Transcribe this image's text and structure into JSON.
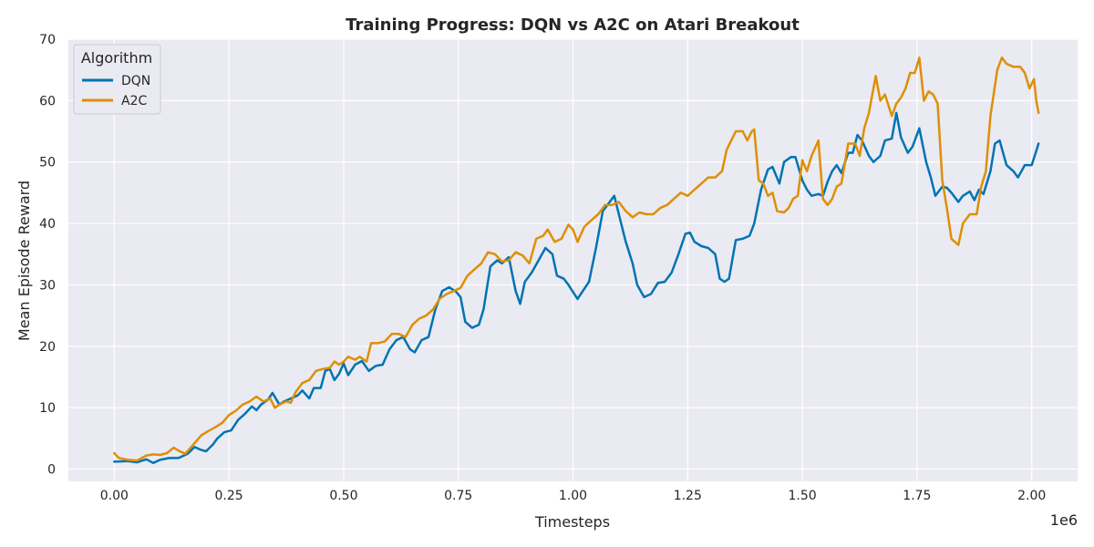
{
  "chart_data": {
    "type": "line",
    "title": "Training Progress: DQN vs A2C on Atari Breakout",
    "xlabel": "Timesteps",
    "ylabel": "Mean Episode Reward",
    "x_offset_label": "1e6",
    "xlim": [
      -0.1,
      2.1
    ],
    "ylim": [
      -2,
      70
    ],
    "x_ticks": [
      0.0,
      0.25,
      0.5,
      0.75,
      1.0,
      1.25,
      1.5,
      1.75,
      2.0
    ],
    "x_tick_labels": [
      "0.00",
      "0.25",
      "0.50",
      "0.75",
      "1.00",
      "1.25",
      "1.50",
      "1.75",
      "2.00"
    ],
    "y_ticks": [
      0,
      10,
      20,
      30,
      40,
      50,
      60,
      70
    ],
    "y_tick_labels": [
      "0",
      "10",
      "20",
      "30",
      "40",
      "50",
      "60",
      "70"
    ],
    "grid": true,
    "legend_title": "Algorithm",
    "legend_position": "top-left",
    "series": [
      {
        "name": "DQN",
        "color": "#0173b2",
        "points": [
          [
            0.0,
            1.2
          ],
          [
            0.03,
            1.3
          ],
          [
            0.05,
            1.1
          ],
          [
            0.07,
            1.6
          ],
          [
            0.085,
            1.0
          ],
          [
            0.1,
            1.5
          ],
          [
            0.12,
            1.8
          ],
          [
            0.14,
            1.8
          ],
          [
            0.16,
            2.5
          ],
          [
            0.175,
            3.6
          ],
          [
            0.19,
            3.1
          ],
          [
            0.2,
            2.9
          ],
          [
            0.215,
            4.0
          ],
          [
            0.225,
            5.0
          ],
          [
            0.24,
            6.0
          ],
          [
            0.255,
            6.3
          ],
          [
            0.27,
            8.0
          ],
          [
            0.285,
            9.0
          ],
          [
            0.3,
            10.2
          ],
          [
            0.31,
            9.6
          ],
          [
            0.32,
            10.5
          ],
          [
            0.335,
            11.3
          ],
          [
            0.345,
            12.4
          ],
          [
            0.36,
            10.5
          ],
          [
            0.37,
            11.0
          ],
          [
            0.385,
            11.5
          ],
          [
            0.4,
            12.0
          ],
          [
            0.41,
            12.8
          ],
          [
            0.425,
            11.5
          ],
          [
            0.435,
            13.2
          ],
          [
            0.45,
            13.2
          ],
          [
            0.46,
            16.0
          ],
          [
            0.47,
            16.3
          ],
          [
            0.48,
            14.5
          ],
          [
            0.49,
            15.5
          ],
          [
            0.5,
            17.2
          ],
          [
            0.51,
            15.3
          ],
          [
            0.525,
            17.0
          ],
          [
            0.54,
            17.6
          ],
          [
            0.555,
            16.0
          ],
          [
            0.57,
            16.8
          ],
          [
            0.585,
            17.0
          ],
          [
            0.6,
            19.5
          ],
          [
            0.615,
            21.0
          ],
          [
            0.63,
            21.5
          ],
          [
            0.645,
            19.5
          ],
          [
            0.655,
            19.0
          ],
          [
            0.67,
            21.0
          ],
          [
            0.685,
            21.5
          ],
          [
            0.7,
            26.0
          ],
          [
            0.715,
            29.0
          ],
          [
            0.73,
            29.6
          ],
          [
            0.745,
            28.9
          ],
          [
            0.755,
            28.0
          ],
          [
            0.765,
            24.0
          ],
          [
            0.78,
            23.0
          ],
          [
            0.795,
            23.5
          ],
          [
            0.805,
            26.0
          ],
          [
            0.82,
            33.0
          ],
          [
            0.835,
            34.0
          ],
          [
            0.845,
            33.5
          ],
          [
            0.86,
            34.5
          ],
          [
            0.875,
            29.0
          ],
          [
            0.885,
            26.9
          ],
          [
            0.895,
            30.5
          ],
          [
            0.91,
            32.0
          ],
          [
            0.925,
            34.0
          ],
          [
            0.94,
            36.0
          ],
          [
            0.955,
            35.0
          ],
          [
            0.965,
            31.5
          ],
          [
            0.98,
            31.0
          ],
          [
            0.99,
            30.0
          ],
          [
            1.01,
            27.7
          ],
          [
            1.035,
            30.5
          ],
          [
            1.05,
            36.0
          ],
          [
            1.065,
            42.0
          ],
          [
            1.08,
            43.5
          ],
          [
            1.09,
            44.5
          ],
          [
            1.1,
            41.5
          ],
          [
            1.115,
            37.0
          ],
          [
            1.13,
            33.5
          ],
          [
            1.14,
            30.0
          ],
          [
            1.155,
            28.0
          ],
          [
            1.17,
            28.5
          ],
          [
            1.185,
            30.3
          ],
          [
            1.2,
            30.5
          ],
          [
            1.215,
            32.0
          ],
          [
            1.23,
            35.0
          ],
          [
            1.245,
            38.3
          ],
          [
            1.255,
            38.5
          ],
          [
            1.265,
            37.0
          ],
          [
            1.28,
            36.3
          ],
          [
            1.295,
            36.0
          ],
          [
            1.31,
            35.0
          ],
          [
            1.32,
            31.0
          ],
          [
            1.33,
            30.5
          ],
          [
            1.34,
            31.0
          ],
          [
            1.355,
            37.3
          ],
          [
            1.37,
            37.5
          ],
          [
            1.385,
            38.0
          ],
          [
            1.395,
            40.0
          ],
          [
            1.41,
            45.5
          ],
          [
            1.425,
            48.8
          ],
          [
            1.435,
            49.2
          ],
          [
            1.45,
            46.5
          ],
          [
            1.46,
            50.0
          ],
          [
            1.475,
            50.8
          ],
          [
            1.485,
            50.8
          ],
          [
            1.5,
            47.0
          ],
          [
            1.51,
            45.5
          ],
          [
            1.52,
            44.5
          ],
          [
            1.535,
            44.8
          ],
          [
            1.545,
            44.5
          ],
          [
            1.555,
            46.8
          ],
          [
            1.565,
            48.5
          ],
          [
            1.575,
            49.5
          ],
          [
            1.585,
            48.2
          ],
          [
            1.6,
            51.5
          ],
          [
            1.61,
            51.5
          ],
          [
            1.62,
            54.4
          ],
          [
            1.63,
            53.5
          ],
          [
            1.645,
            51.0
          ],
          [
            1.655,
            50.0
          ],
          [
            1.67,
            51.0
          ],
          [
            1.68,
            53.5
          ],
          [
            1.695,
            53.8
          ],
          [
            1.705,
            58.0
          ],
          [
            1.715,
            54.0
          ],
          [
            1.73,
            51.5
          ],
          [
            1.74,
            52.5
          ],
          [
            1.755,
            55.5
          ],
          [
            1.77,
            50.0
          ],
          [
            1.78,
            47.5
          ],
          [
            1.79,
            44.5
          ],
          [
            1.805,
            46.0
          ],
          [
            1.815,
            45.8
          ],
          [
            1.825,
            45.0
          ],
          [
            1.84,
            43.5
          ],
          [
            1.85,
            44.5
          ],
          [
            1.865,
            45.2
          ],
          [
            1.875,
            43.8
          ],
          [
            1.885,
            45.5
          ],
          [
            1.895,
            44.8
          ],
          [
            1.91,
            48.5
          ],
          [
            1.92,
            53.0
          ],
          [
            1.93,
            53.5
          ],
          [
            1.945,
            49.5
          ],
          [
            1.96,
            48.5
          ],
          [
            1.97,
            47.5
          ],
          [
            1.985,
            49.5
          ],
          [
            2.0,
            49.5
          ],
          [
            2.015,
            53.0
          ]
        ]
      },
      {
        "name": "A2C",
        "color": "#de8f05",
        "points": [
          [
            0.0,
            2.6
          ],
          [
            0.01,
            1.8
          ],
          [
            0.03,
            1.5
          ],
          [
            0.05,
            1.4
          ],
          [
            0.07,
            2.2
          ],
          [
            0.085,
            2.4
          ],
          [
            0.1,
            2.3
          ],
          [
            0.115,
            2.6
          ],
          [
            0.13,
            3.5
          ],
          [
            0.14,
            3.0
          ],
          [
            0.155,
            2.5
          ],
          [
            0.17,
            3.8
          ],
          [
            0.19,
            5.5
          ],
          [
            0.205,
            6.2
          ],
          [
            0.22,
            6.8
          ],
          [
            0.235,
            7.5
          ],
          [
            0.25,
            8.8
          ],
          [
            0.265,
            9.5
          ],
          [
            0.28,
            10.5
          ],
          [
            0.295,
            11.0
          ],
          [
            0.31,
            11.8
          ],
          [
            0.325,
            11.0
          ],
          [
            0.34,
            11.5
          ],
          [
            0.35,
            10.0
          ],
          [
            0.36,
            10.5
          ],
          [
            0.375,
            11.0
          ],
          [
            0.385,
            10.8
          ],
          [
            0.395,
            12.5
          ],
          [
            0.41,
            14.0
          ],
          [
            0.425,
            14.5
          ],
          [
            0.44,
            16.0
          ],
          [
            0.455,
            16.3
          ],
          [
            0.47,
            16.5
          ],
          [
            0.48,
            17.5
          ],
          [
            0.49,
            17.0
          ],
          [
            0.5,
            17.5
          ],
          [
            0.51,
            18.3
          ],
          [
            0.525,
            17.8
          ],
          [
            0.535,
            18.3
          ],
          [
            0.55,
            17.5
          ],
          [
            0.56,
            20.5
          ],
          [
            0.575,
            20.5
          ],
          [
            0.59,
            20.8
          ],
          [
            0.605,
            22.0
          ],
          [
            0.62,
            22.0
          ],
          [
            0.635,
            21.5
          ],
          [
            0.65,
            23.5
          ],
          [
            0.665,
            24.5
          ],
          [
            0.68,
            25.0
          ],
          [
            0.695,
            26.0
          ],
          [
            0.71,
            27.8
          ],
          [
            0.725,
            28.5
          ],
          [
            0.74,
            29.0
          ],
          [
            0.755,
            29.5
          ],
          [
            0.77,
            31.5
          ],
          [
            0.785,
            32.5
          ],
          [
            0.8,
            33.5
          ],
          [
            0.815,
            35.3
          ],
          [
            0.83,
            35.0
          ],
          [
            0.845,
            33.8
          ],
          [
            0.86,
            34.0
          ],
          [
            0.875,
            35.3
          ],
          [
            0.89,
            34.8
          ],
          [
            0.905,
            33.5
          ],
          [
            0.92,
            37.5
          ],
          [
            0.935,
            38.0
          ],
          [
            0.945,
            39.0
          ],
          [
            0.96,
            37.0
          ],
          [
            0.975,
            37.5
          ],
          [
            0.99,
            39.8
          ],
          [
            1.0,
            39.0
          ],
          [
            1.01,
            37.0
          ],
          [
            1.025,
            39.5
          ],
          [
            1.04,
            40.5
          ],
          [
            1.055,
            41.5
          ],
          [
            1.07,
            43.0
          ],
          [
            1.085,
            43.0
          ],
          [
            1.1,
            43.5
          ],
          [
            1.115,
            42.0
          ],
          [
            1.13,
            41.0
          ],
          [
            1.145,
            41.8
          ],
          [
            1.16,
            41.5
          ],
          [
            1.175,
            41.5
          ],
          [
            1.19,
            42.5
          ],
          [
            1.205,
            43.0
          ],
          [
            1.22,
            44.0
          ],
          [
            1.235,
            45.0
          ],
          [
            1.25,
            44.5
          ],
          [
            1.265,
            45.5
          ],
          [
            1.28,
            46.5
          ],
          [
            1.295,
            47.5
          ],
          [
            1.31,
            47.5
          ],
          [
            1.325,
            48.5
          ],
          [
            1.335,
            52.0
          ],
          [
            1.345,
            53.5
          ],
          [
            1.355,
            55.0
          ],
          [
            1.37,
            55.0
          ],
          [
            1.38,
            53.5
          ],
          [
            1.39,
            55.0
          ],
          [
            1.395,
            55.3
          ],
          [
            1.405,
            47.0
          ],
          [
            1.415,
            46.5
          ],
          [
            1.425,
            44.5
          ],
          [
            1.435,
            45.0
          ],
          [
            1.445,
            42.0
          ],
          [
            1.46,
            41.8
          ],
          [
            1.47,
            42.5
          ],
          [
            1.48,
            44.0
          ],
          [
            1.49,
            44.5
          ],
          [
            1.5,
            50.3
          ],
          [
            1.51,
            48.5
          ],
          [
            1.52,
            51.0
          ],
          [
            1.535,
            53.5
          ],
          [
            1.545,
            44.0
          ],
          [
            1.555,
            43.0
          ],
          [
            1.565,
            44.0
          ],
          [
            1.575,
            46.0
          ],
          [
            1.585,
            46.5
          ],
          [
            1.6,
            53.0
          ],
          [
            1.615,
            53.0
          ],
          [
            1.625,
            51.0
          ],
          [
            1.635,
            55.5
          ],
          [
            1.645,
            58.0
          ],
          [
            1.66,
            64.0
          ],
          [
            1.67,
            60.0
          ],
          [
            1.68,
            61.0
          ],
          [
            1.695,
            57.5
          ],
          [
            1.705,
            59.5
          ],
          [
            1.715,
            60.5
          ],
          [
            1.725,
            62.0
          ],
          [
            1.735,
            64.5
          ],
          [
            1.745,
            64.5
          ],
          [
            1.755,
            67.0
          ],
          [
            1.765,
            60.0
          ],
          [
            1.775,
            61.5
          ],
          [
            1.785,
            61.0
          ],
          [
            1.795,
            59.5
          ],
          [
            1.805,
            47.0
          ],
          [
            1.815,
            42.5
          ],
          [
            1.825,
            37.5
          ],
          [
            1.84,
            36.5
          ],
          [
            1.85,
            40.0
          ],
          [
            1.865,
            41.5
          ],
          [
            1.88,
            41.5
          ],
          [
            1.89,
            46.0
          ],
          [
            1.9,
            48.5
          ],
          [
            1.91,
            57.5
          ],
          [
            1.925,
            65.0
          ],
          [
            1.935,
            67.0
          ],
          [
            1.945,
            66.0
          ],
          [
            1.96,
            65.5
          ],
          [
            1.975,
            65.5
          ],
          [
            1.985,
            64.5
          ],
          [
            1.995,
            62.0
          ],
          [
            2.005,
            63.5
          ],
          [
            2.01,
            60.0
          ],
          [
            2.015,
            58.0
          ]
        ]
      }
    ]
  }
}
